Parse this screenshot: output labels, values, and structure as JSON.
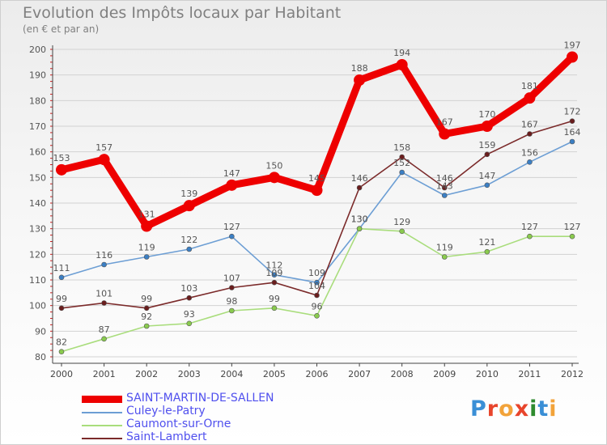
{
  "title": "Evolution des Impôts locaux par Habitant",
  "subtitle": "(en € et par an)",
  "logo": {
    "text": "Proxiti",
    "letters": [
      "P",
      "r",
      "o",
      "x",
      "i",
      "t",
      "i"
    ],
    "colors": [
      "#3a8fd6",
      "#e8452c",
      "#f2a33a",
      "#e8452c",
      "#2e8b2e",
      "#3a8fd6",
      "#f2a33a"
    ]
  },
  "chart_data": {
    "type": "line",
    "title": "Evolution des Impôts locaux par Habitant",
    "subtitle": "(en € et par an)",
    "xlabel": "",
    "ylabel": "",
    "ylim": [
      80,
      200
    ],
    "y_ticks": [
      80,
      90,
      100,
      110,
      120,
      130,
      140,
      150,
      160,
      170,
      180,
      190,
      200
    ],
    "categories": [
      "2000",
      "2001",
      "2002",
      "2003",
      "2004",
      "2005",
      "2006",
      "2007",
      "2008",
      "2009",
      "2010",
      "2011",
      "2012"
    ],
    "grid": "horizontal",
    "legend_position": "bottom-left",
    "series": [
      {
        "name": "SAINT-MARTIN-DE-SALLEN",
        "color": "#ee0000",
        "marker_fill": "#ee0000",
        "emphasis": true,
        "values": [
          153,
          157,
          131,
          139,
          147,
          150,
          145,
          188,
          194,
          167,
          170,
          181,
          197
        ]
      },
      {
        "name": "Culey-le-Patry",
        "color": "#6c9ed4",
        "marker_fill": "#3b7fc4",
        "emphasis": false,
        "values": [
          111,
          116,
          119,
          122,
          127,
          112,
          109,
          130,
          152,
          143,
          147,
          156,
          164
        ]
      },
      {
        "name": "Caumont-sur-Orne",
        "color": "#a9dd7c",
        "marker_fill": "#8acb4e",
        "emphasis": false,
        "values": [
          82,
          87,
          92,
          93,
          98,
          99,
          96,
          130,
          129,
          119,
          121,
          127,
          127
        ]
      },
      {
        "name": "Saint-Lambert",
        "color": "#7b2a2a",
        "marker_fill": "#6a1d1d",
        "emphasis": false,
        "values": [
          99,
          101,
          99,
          103,
          107,
          109,
          104,
          146,
          158,
          146,
          159,
          167,
          172
        ]
      }
    ]
  }
}
